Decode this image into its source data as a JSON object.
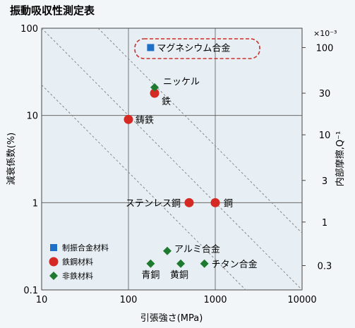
{
  "page": {
    "title": "振動吸収性測定表"
  },
  "chart_data": {
    "type": "scatter",
    "title": "振動吸収性測定表",
    "xlabel": "引張強さ(MPa)",
    "ylabel": "減衰係数(%)",
    "y2label": "内部摩擦,Q⁻¹",
    "y2_unit_note": "×10⁻³",
    "x_scale": "log",
    "y_scale": "log",
    "xlim": [
      10,
      10000
    ],
    "ylim": [
      0.1,
      100
    ],
    "x_ticks": [
      "10",
      "100",
      "1000",
      "10000"
    ],
    "y_ticks": [
      "0.1",
      "1",
      "10",
      "100"
    ],
    "y2_ticks": [
      {
        "label": "100",
        "at_y": 60
      },
      {
        "label": "30",
        "at_y": 18
      },
      {
        "label": "10",
        "at_y": 6
      },
      {
        "label": "3",
        "at_y": 1.8
      },
      {
        "label": "1",
        "at_y": 0.6
      },
      {
        "label": "0.3",
        "at_y": 0.19
      }
    ],
    "grid": true,
    "legend_position": "bottom-left",
    "diagonal_lines": [
      {
        "from": [
          10,
          100
        ],
        "to": [
          10000,
          0.1
        ]
      },
      {
        "from": [
          44.7,
          100
        ],
        "to": [
          10000,
          0.447
        ]
      },
      {
        "from": [
          10,
          22.4
        ],
        "to": [
          2240,
          0.1
        ]
      }
    ],
    "series": [
      {
        "name": "制振合金材料",
        "marker": "square",
        "color": "#1e6fc8",
        "points": [
          {
            "x": 180,
            "y": 60,
            "label": "マグネシウム合金",
            "highlight": true
          }
        ]
      },
      {
        "name": "鉄鋼材料",
        "marker": "circle",
        "color": "#d52a24",
        "points": [
          {
            "x": 200,
            "y": 18,
            "label": "鉄"
          },
          {
            "x": 100,
            "y": 9,
            "label": "鋳鉄"
          },
          {
            "x": 500,
            "y": 1,
            "label": "ステンレス鋼"
          },
          {
            "x": 1000,
            "y": 1,
            "label": "鋼"
          }
        ]
      },
      {
        "name": "非鉄材料",
        "marker": "diamond",
        "color": "#1e7a2e",
        "points": [
          {
            "x": 200,
            "y": 21,
            "label": "ニッケル"
          },
          {
            "x": 280,
            "y": 0.28,
            "label": "アルミ合金"
          },
          {
            "x": 180,
            "y": 0.2,
            "label": "青銅"
          },
          {
            "x": 400,
            "y": 0.2,
            "label": "黄銅"
          },
          {
            "x": 750,
            "y": 0.2,
            "label": "チタン合金"
          }
        ]
      }
    ]
  }
}
